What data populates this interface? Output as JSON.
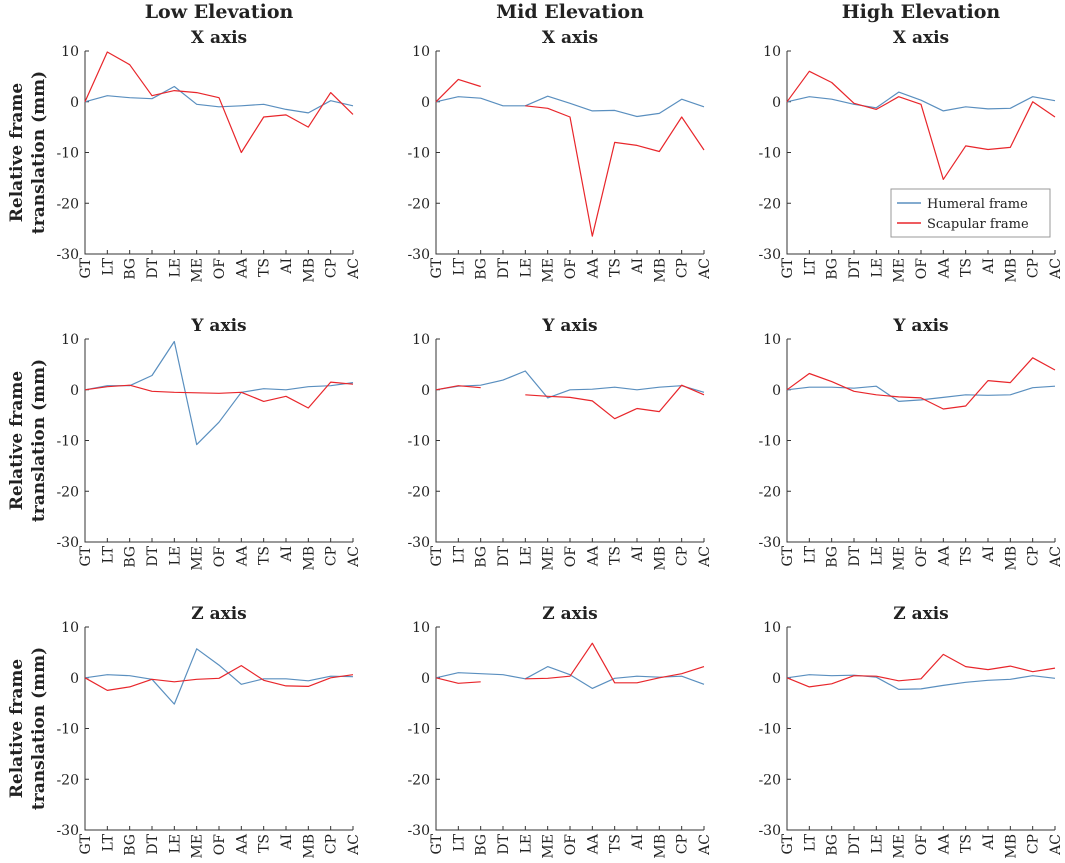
{
  "chart_data": {
    "type": "line",
    "column_titles": [
      "Low Elevation",
      "Mid Elevation",
      "High Elevation"
    ],
    "row_titles": [
      "X axis",
      "Y axis",
      "Z axis"
    ],
    "ylabel_line1": "Relative frame",
    "ylabel_line2": "translation (mm)",
    "categories": [
      "GT",
      "LT",
      "BG",
      "DT",
      "LE",
      "ME",
      "OF",
      "AA",
      "TS",
      "AI",
      "MB",
      "CP",
      "AC"
    ],
    "ylim": [
      -30,
      10
    ],
    "yticks": [
      10,
      0,
      -10,
      -20,
      -30
    ],
    "legend": {
      "position": "inside-lower-right of High Elevation X axis panel",
      "entries": [
        "Humeral frame",
        "Scapular frame"
      ]
    },
    "colors": {
      "humeral": "#5a8fbf",
      "scapular": "#e8262b"
    },
    "panels": [
      {
        "row": 0,
        "col": 0,
        "humeral": [
          0,
          1.2,
          0.8,
          0.6,
          3.0,
          -0.5,
          -1.0,
          -0.8,
          -0.5,
          -1.5,
          -2.2,
          0.2,
          -0.8
        ],
        "scapular": [
          0,
          9.8,
          7.3,
          1.2,
          2.2,
          1.8,
          0.8,
          -10.0,
          -3.0,
          -2.6,
          -5.0,
          1.8,
          -2.5
        ]
      },
      {
        "row": 0,
        "col": 1,
        "humeral": [
          0,
          1.0,
          0.7,
          -0.8,
          -0.8,
          1.1,
          -0.3,
          -1.8,
          -1.7,
          -2.9,
          -2.3,
          0.5,
          -1.0
        ],
        "scapular": [
          0,
          4.4,
          3.0,
          null,
          -0.8,
          -1.3,
          -3.0,
          -26.5,
          -8.0,
          -8.6,
          -9.8,
          -3.0,
          -9.5
        ]
      },
      {
        "row": 0,
        "col": 2,
        "humeral": [
          0,
          1.0,
          0.5,
          -0.5,
          -1.2,
          1.9,
          0.3,
          -1.8,
          -1.0,
          -1.4,
          -1.3,
          1.0,
          0.2
        ],
        "scapular": [
          0,
          6.0,
          3.8,
          -0.3,
          -1.5,
          1.0,
          -0.5,
          -15.3,
          -8.7,
          -9.4,
          -9.0,
          0.0,
          -3.0
        ]
      },
      {
        "row": 1,
        "col": 0,
        "humeral": [
          0,
          0.8,
          0.8,
          2.8,
          9.5,
          -10.8,
          -6.4,
          -0.5,
          0.2,
          0.0,
          0.6,
          0.8,
          1.4
        ],
        "scapular": [
          0,
          0.6,
          0.9,
          -0.3,
          -0.5,
          -0.6,
          -0.7,
          -0.5,
          -2.3,
          -1.3,
          -3.6,
          1.5,
          1.1
        ]
      },
      {
        "row": 1,
        "col": 1,
        "humeral": [
          0,
          0.7,
          0.9,
          1.9,
          3.7,
          -1.6,
          0.0,
          0.1,
          0.5,
          0.0,
          0.5,
          0.8,
          -0.5
        ],
        "scapular": [
          0,
          0.8,
          0.4,
          null,
          -1.0,
          -1.3,
          -1.5,
          -2.2,
          -5.7,
          -3.7,
          -4.3,
          0.9,
          -1.0
        ]
      },
      {
        "row": 1,
        "col": 2,
        "humeral": [
          0,
          0.5,
          0.5,
          0.3,
          0.7,
          -2.3,
          -2.0,
          -1.5,
          -1.0,
          -1.1,
          -1.0,
          0.4,
          0.7
        ],
        "scapular": [
          0,
          3.2,
          1.6,
          -0.3,
          -1.0,
          -1.4,
          -1.6,
          -3.8,
          -3.2,
          1.8,
          1.4,
          6.3,
          3.9
        ]
      },
      {
        "row": 2,
        "col": 0,
        "humeral": [
          0,
          0.6,
          0.4,
          -0.3,
          -5.2,
          5.7,
          2.5,
          -1.3,
          -0.2,
          -0.2,
          -0.6,
          0.3,
          0.2
        ],
        "scapular": [
          0,
          -2.5,
          -1.8,
          -0.3,
          -0.8,
          -0.3,
          -0.1,
          2.4,
          -0.5,
          -1.6,
          -1.7,
          0.0,
          0.6
        ]
      },
      {
        "row": 2,
        "col": 1,
        "humeral": [
          0,
          1.0,
          0.8,
          0.6,
          -0.2,
          2.2,
          0.6,
          -2.1,
          -0.1,
          0.3,
          0.1,
          0.3,
          -1.3
        ],
        "scapular": [
          0,
          -1.1,
          -0.8,
          null,
          -0.2,
          -0.1,
          0.3,
          6.8,
          -1.0,
          -1.0,
          0.0,
          0.8,
          2.2
        ]
      },
      {
        "row": 2,
        "col": 2,
        "humeral": [
          0,
          0.6,
          0.4,
          0.5,
          0.1,
          -2.3,
          -2.2,
          -1.5,
          -0.9,
          -0.5,
          -0.3,
          0.4,
          -0.1
        ],
        "scapular": [
          0,
          -1.8,
          -1.2,
          0.4,
          0.3,
          -0.6,
          -0.2,
          4.6,
          2.2,
          1.6,
          2.3,
          1.2,
          1.9
        ]
      }
    ]
  }
}
